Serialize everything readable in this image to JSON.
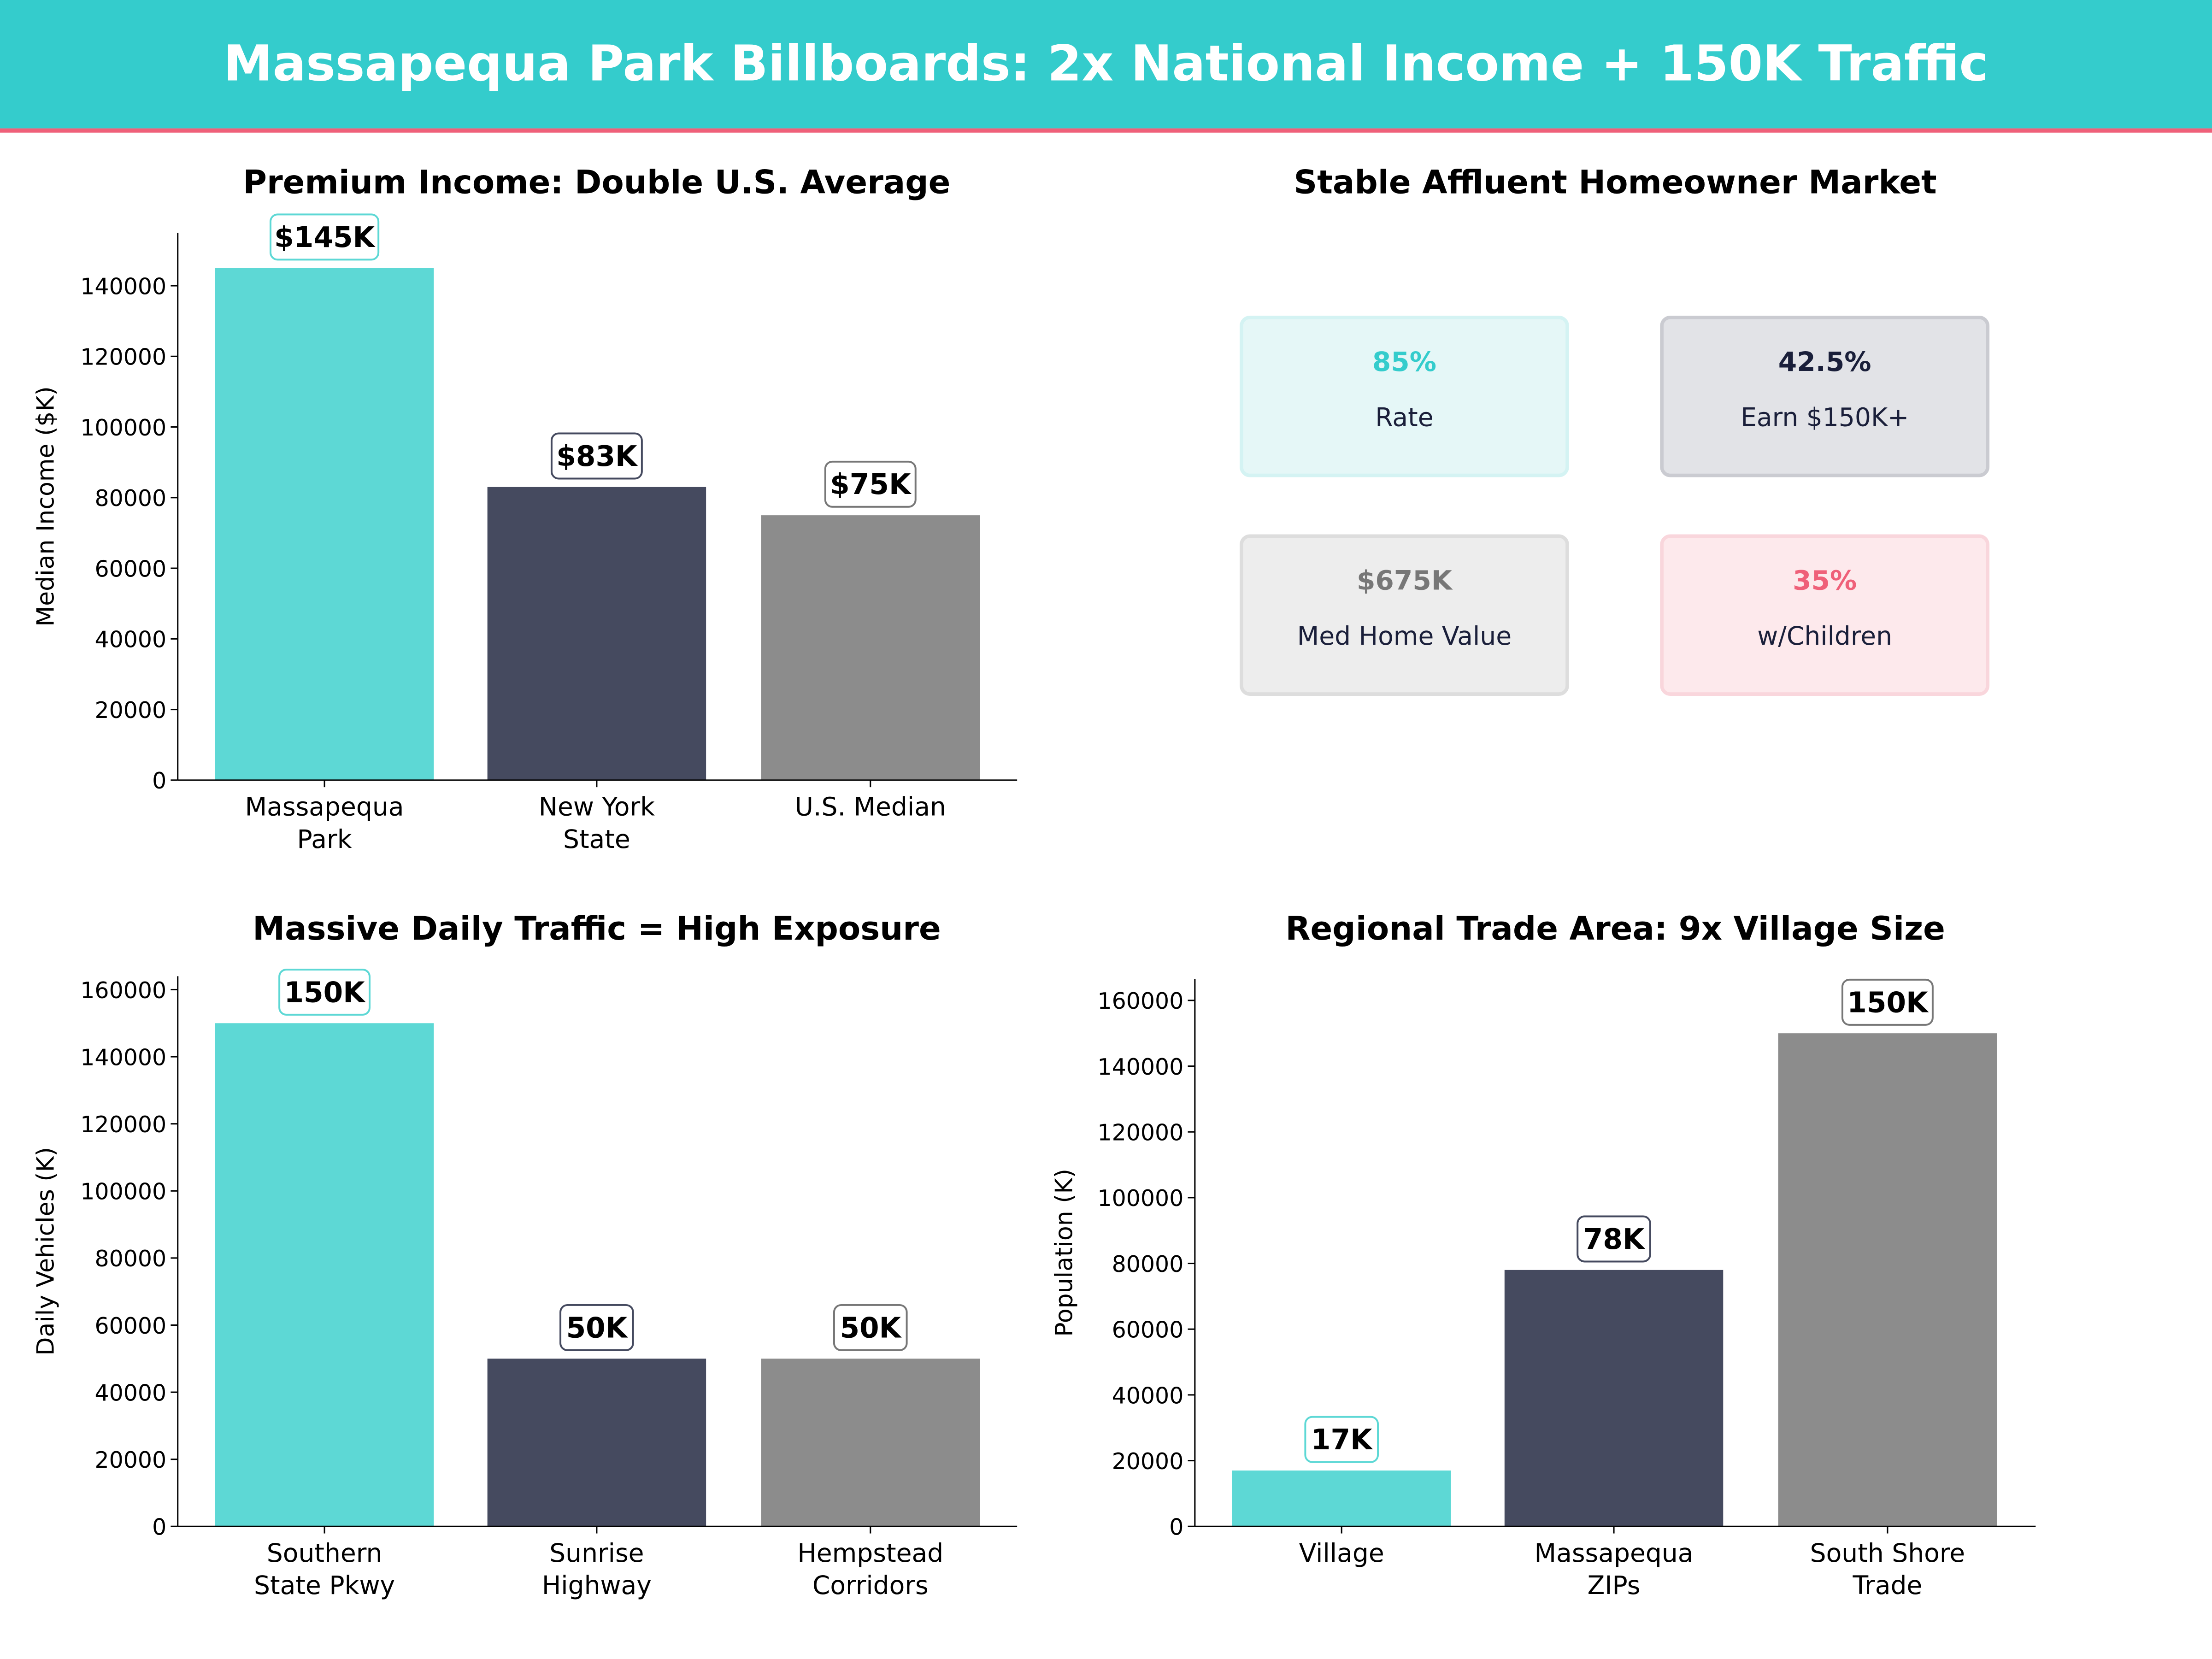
{
  "header": {
    "title": "Massapequa Park Billboards: 2x National Income + 150K Traffic",
    "bg_color": "#34CCCC",
    "accent_line_color": "#EF6079"
  },
  "colors": {
    "teal": "#5DD8D5",
    "navy": "#454A5F",
    "gray": "#8C8C8C"
  },
  "chart_data": [
    {
      "type": "bar",
      "title": "Premium Income: Double U.S. Average",
      "ylabel": "Median Income ($K)",
      "xlabel": "",
      "categories": [
        "Massapequa\nPark",
        "New York\nState",
        "U.S. Median"
      ],
      "values": [
        145000,
        83000,
        75000
      ],
      "data_labels": [
        "$145K",
        "$83K",
        "$75K"
      ],
      "ylim": [
        0,
        155000
      ],
      "yticks": [
        0,
        20000,
        40000,
        60000,
        80000,
        100000,
        120000,
        140000
      ],
      "grid": false
    },
    {
      "type": "bar",
      "title": "Massive Daily Traffic = High Exposure",
      "ylabel": "Daily Vehicles (K)",
      "xlabel": "",
      "categories": [
        "Southern\nState Pkwy",
        "Sunrise\nHighway",
        "Hempstead\nCorridors"
      ],
      "values": [
        150000,
        50000,
        50000
      ],
      "data_labels": [
        "150K",
        "50K",
        "50K"
      ],
      "ylim": [
        0,
        164000
      ],
      "yticks": [
        0,
        20000,
        40000,
        60000,
        80000,
        100000,
        120000,
        140000,
        160000
      ],
      "grid": false
    },
    {
      "type": "bar",
      "title": "Regional Trade Area: 9x Village Size",
      "ylabel": "Population (K)",
      "xlabel": "",
      "categories": [
        "Village",
        "Massapequa\nZIPs",
        "South Shore\nTrade"
      ],
      "values": [
        17000,
        78000,
        150000
      ],
      "data_labels": [
        "17K",
        "78K",
        "150K"
      ],
      "ylim": [
        0,
        166500
      ],
      "yticks": [
        0,
        20000,
        40000,
        60000,
        80000,
        100000,
        120000,
        140000,
        160000
      ],
      "grid": false
    }
  ],
  "kpi_panel": {
    "title": "Stable Affluent Homeowner Market",
    "cards": [
      {
        "value": "85%",
        "label": "Rate",
        "value_color": "#34CCCC",
        "bg": "#E5F7F7",
        "border": "#D4F3F3"
      },
      {
        "value": "42.5%",
        "label": "Earn $150K+",
        "value_color": "#1A1F3A",
        "bg": "#E2E3E7",
        "border": "#CACBD1"
      },
      {
        "value": "$675K",
        "label": "Med Home Value",
        "value_color": "#777777",
        "bg": "#EDEDED",
        "border": "#DDDDDD"
      },
      {
        "value": "35%",
        "label": "w/Children",
        "value_color": "#EF6079",
        "bg": "#FDE9EC",
        "border": "#F9D6DC"
      }
    ]
  }
}
